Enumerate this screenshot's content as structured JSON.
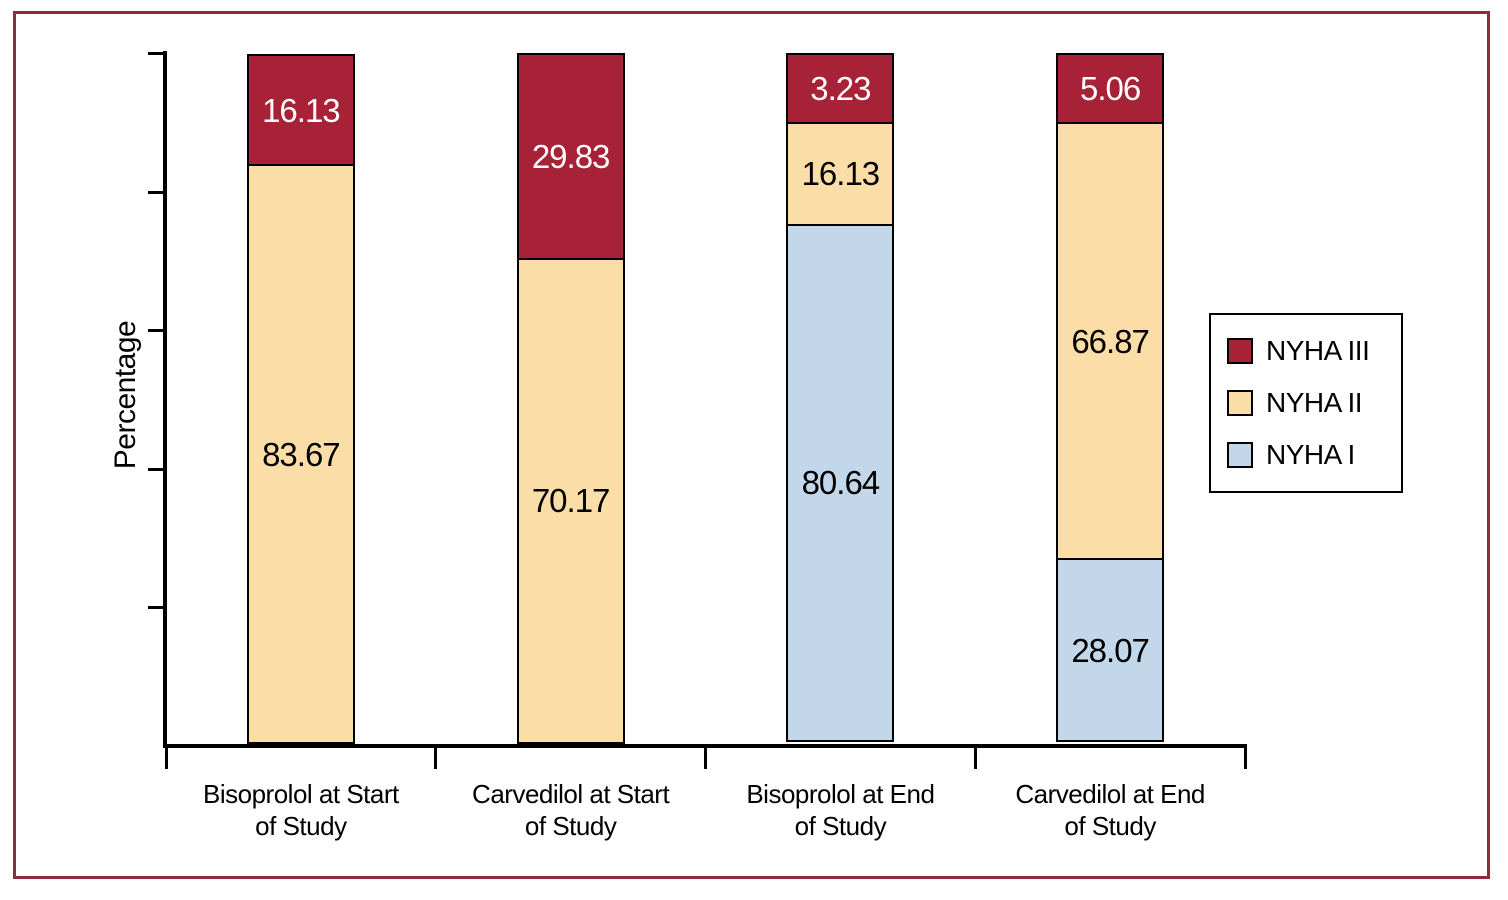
{
  "colors": {
    "frame": "#8E2B3D",
    "axis": "#000000",
    "bar_border": "#000000",
    "background": "#FFFFFF"
  },
  "chart_data": {
    "type": "bar",
    "subtype": "stacked-percentage-bar",
    "title": "",
    "xlabel": "",
    "ylabel": "Percentage",
    "y_axis": {
      "min": 0,
      "max": 100,
      "tick_step": 20,
      "tick_labels_visible": false,
      "grid": false
    },
    "categories": [
      {
        "id": "bisoprolol-start",
        "label_lines": [
          "Bisoprolol at Start",
          "of Study"
        ]
      },
      {
        "id": "carvedilol-start",
        "label_lines": [
          "Carvedilol at Start",
          "of Study"
        ]
      },
      {
        "id": "bisoprolol-end",
        "label_lines": [
          "Bisoprolol at End",
          "of Study"
        ]
      },
      {
        "id": "carvedilol-end",
        "label_lines": [
          "Carvedilol at End",
          "of Study"
        ]
      }
    ],
    "series": [
      {
        "name": "NYHA I",
        "color": "#C3D7EB",
        "label_color": "#000000",
        "values": [
          null,
          null,
          80.64,
          28.07
        ]
      },
      {
        "name": "NYHA II",
        "color": "#FBDDA7",
        "label_color": "#000000",
        "values": [
          83.67,
          70.17,
          16.13,
          66.87
        ]
      },
      {
        "name": "NYHA III",
        "color": "#A72137",
        "label_color": "#FFFFFF",
        "values": [
          16.13,
          29.83,
          3.23,
          5.06
        ]
      }
    ],
    "legend": {
      "position": "right",
      "entries": [
        "NYHA III",
        "NYHA II",
        "NYHA I"
      ]
    }
  }
}
